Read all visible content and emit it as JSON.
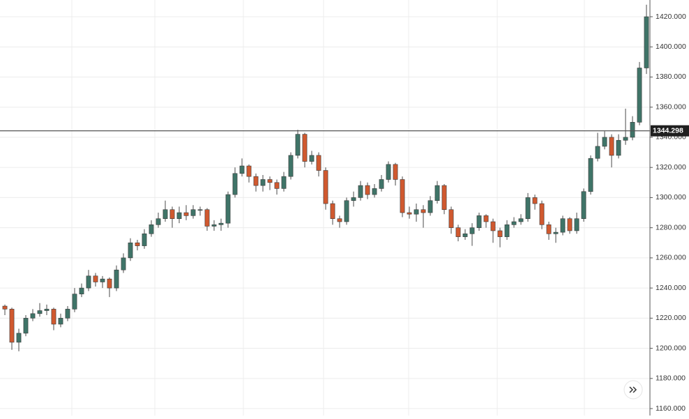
{
  "chart_data": {
    "type": "candlestick",
    "open": [
      1228,
      1226,
      1204,
      1210,
      1220,
      1223,
      1225,
      1226,
      1216,
      1220,
      1226,
      1236,
      1240,
      1248,
      1244,
      1246,
      1240,
      1252,
      1260,
      1270,
      1268,
      1276,
      1282,
      1286,
      1292,
      1286,
      1290,
      1288,
      1292,
      1292,
      1281,
      1282,
      1283,
      1302,
      1316,
      1321,
      1314,
      1308,
      1312,
      1310,
      1306,
      1314,
      1328,
      1342,
      1324,
      1328,
      1318,
      1296,
      1286,
      1284,
      1298,
      1300,
      1308,
      1302,
      1306,
      1312,
      1322,
      1312,
      1290,
      1289,
      1292,
      1290,
      1298,
      1308,
      1292,
      1280,
      1274,
      1276,
      1280,
      1288,
      1284,
      1278,
      1274,
      1282,
      1284,
      1286,
      1300,
      1296,
      1282,
      1276,
      1277,
      1286,
      1278,
      1286,
      1304,
      1326,
      1334,
      1340,
      1328,
      1338,
      1340,
      1350,
      1386
    ],
    "high": [
      1229,
      1227,
      1213,
      1222,
      1226,
      1230,
      1229,
      1227,
      1223,
      1228,
      1240,
      1243,
      1252,
      1250,
      1248,
      1247,
      1255,
      1263,
      1273,
      1272,
      1279,
      1285,
      1290,
      1298,
      1294,
      1294,
      1295,
      1295,
      1294,
      1293,
      1285,
      1286,
      1304,
      1320,
      1326,
      1322,
      1316,
      1315,
      1314,
      1312,
      1317,
      1330,
      1345,
      1343,
      1331,
      1330,
      1320,
      1298,
      1288,
      1300,
      1304,
      1311,
      1310,
      1309,
      1315,
      1324,
      1323,
      1314,
      1294,
      1296,
      1295,
      1301,
      1311,
      1309,
      1294,
      1282,
      1279,
      1283,
      1290,
      1289,
      1286,
      1280,
      1285,
      1287,
      1289,
      1303,
      1302,
      1298,
      1284,
      1280,
      1288,
      1287,
      1290,
      1306,
      1328,
      1343,
      1344,
      1342,
      1342,
      1359,
      1354,
      1390,
      1428
    ],
    "low": [
      1222,
      1199,
      1198,
      1208,
      1218,
      1221,
      1222,
      1212,
      1214,
      1218,
      1224,
      1234,
      1238,
      1241,
      1240,
      1234,
      1238,
      1250,
      1258,
      1265,
      1266,
      1274,
      1280,
      1284,
      1280,
      1283,
      1285,
      1286,
      1288,
      1278,
      1278,
      1278,
      1280,
      1300,
      1314,
      1310,
      1304,
      1304,
      1305,
      1302,
      1304,
      1312,
      1326,
      1320,
      1322,
      1314,
      1292,
      1282,
      1280,
      1282,
      1294,
      1298,
      1299,
      1300,
      1304,
      1310,
      1308,
      1287,
      1286,
      1284,
      1280,
      1288,
      1296,
      1289,
      1276,
      1271,
      1272,
      1268,
      1278,
      1280,
      1270,
      1267,
      1272,
      1280,
      1282,
      1284,
      1292,
      1279,
      1272,
      1270,
      1275,
      1276,
      1276,
      1284,
      1302,
      1324,
      1332,
      1320,
      1326,
      1335,
      1338,
      1348,
      1382
    ],
    "close": [
      1226,
      1204,
      1210,
      1220,
      1223,
      1225,
      1226,
      1216,
      1220,
      1226,
      1236,
      1240,
      1248,
      1244,
      1246,
      1240,
      1252,
      1260,
      1270,
      1268,
      1276,
      1282,
      1286,
      1292,
      1286,
      1290,
      1288,
      1292,
      1292,
      1281,
      1282,
      1283,
      1302,
      1316,
      1321,
      1314,
      1308,
      1312,
      1310,
      1306,
      1314,
      1328,
      1342,
      1324,
      1328,
      1318,
      1296,
      1286,
      1284,
      1298,
      1300,
      1308,
      1302,
      1306,
      1312,
      1322,
      1312,
      1290,
      1289,
      1292,
      1290,
      1298,
      1308,
      1292,
      1280,
      1274,
      1276,
      1280,
      1288,
      1284,
      1278,
      1274,
      1282,
      1284,
      1286,
      1300,
      1296,
      1282,
      1276,
      1277,
      1286,
      1278,
      1286,
      1304,
      1326,
      1334,
      1340,
      1328,
      1338,
      1340,
      1350,
      1386,
      1420
    ],
    "colors": {
      "up": "#3f7468",
      "down": "#d0592f"
    },
    "ylim": [
      1155.4,
      1431.1
    ],
    "yticks": [
      {
        "value": 1160,
        "label": "1160.000"
      },
      {
        "value": 1180,
        "label": "1180.000"
      },
      {
        "value": 1200,
        "label": "1200.000"
      },
      {
        "value": 1220,
        "label": "1220.000"
      },
      {
        "value": 1240,
        "label": "1240.000"
      },
      {
        "value": 1260,
        "label": "1260.000"
      },
      {
        "value": 1280,
        "label": "1280.000"
      },
      {
        "value": 1300,
        "label": "1300.000"
      },
      {
        "value": 1320,
        "label": "1320.000"
      },
      {
        "value": 1340,
        "label": "1340.000"
      },
      {
        "value": 1360,
        "label": "1360.000"
      },
      {
        "value": 1380,
        "label": "1380.000"
      },
      {
        "value": 1400,
        "label": "1400.000"
      },
      {
        "value": 1420,
        "label": "1420.000"
      }
    ],
    "price_line": 1344.298,
    "grid": true
  }
}
